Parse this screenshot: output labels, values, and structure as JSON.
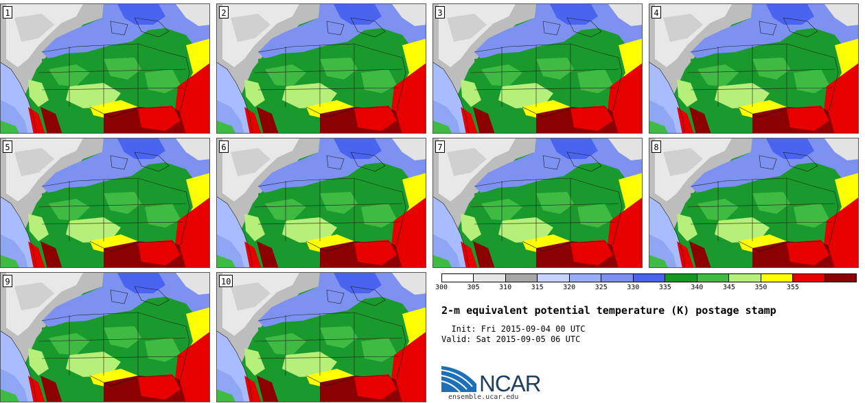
{
  "product": {
    "title": "2-m equivalent potential temperature (K) postage stamp",
    "init": "  Init: Fri 2015-09-04 00 UTC",
    "valid": "Valid: Sat 2015-09-05 06 UTC"
  },
  "members": [
    {
      "label": "1"
    },
    {
      "label": "2"
    },
    {
      "label": "3"
    },
    {
      "label": "4"
    },
    {
      "label": "5"
    },
    {
      "label": "6"
    },
    {
      "label": "7"
    },
    {
      "label": "8"
    },
    {
      "label": "9"
    },
    {
      "label": "10"
    }
  ],
  "colorbar": {
    "ticks": [
      "300",
      "305",
      "310",
      "315",
      "320",
      "325",
      "330",
      "335",
      "340",
      "345",
      "350",
      "355"
    ],
    "colors": [
      "#ffffff",
      "#e6e6e6",
      "#a6a6a6",
      "#c6d2ff",
      "#99adf7",
      "#7b8ff0",
      "#4a64f0",
      "#119922",
      "#3fbb44",
      "#b6f07a",
      "#ffff00",
      "#e60000",
      "#8b0000"
    ]
  },
  "logo": {
    "text": "NCAR",
    "url": "ensemble.ucar.edu"
  }
}
